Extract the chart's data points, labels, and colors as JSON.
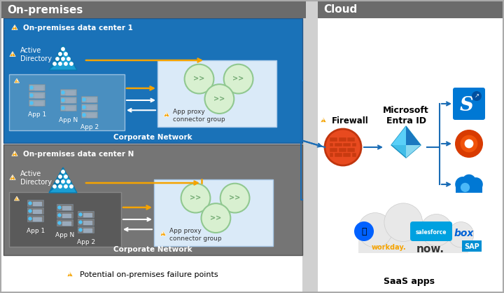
{
  "title_onprem": "On-premises",
  "title_cloud": "Cloud",
  "header_bg": "#6b6b6b",
  "header_text_color": "#ffffff",
  "dc1_bg": "#1a6cb5",
  "dc2_bg": "#757575",
  "corp_net_label": "Corporate Network",
  "dc1_label": "On-premises data center 1",
  "dc2_label": "On-premises data center N",
  "firewall_label": "Firewall",
  "entra_label": "Microsoft\nEntra ID",
  "saas_label": "SaaS apps",
  "failure_label": "Potential on-premises failure points",
  "warning_color": "#f5a300",
  "arrow_color_gold": "#f5a300",
  "arrow_color_white": "#ffffff",
  "arrow_color_blue": "#1a6cb5",
  "firewall_color": "#e84a1f",
  "divider_color": "#c8c8c8",
  "connector_box_bg": "#daeaf8",
  "saas_bg_color": "#f2f2f2",
  "sp_blue": "#0078d4",
  "o365_red": "#d83b01",
  "cloud_blue": "#0078d4",
  "saas_cloud_bg": "#e8e8e8"
}
